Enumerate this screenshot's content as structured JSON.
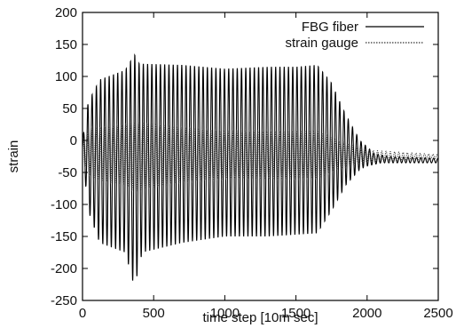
{
  "chart_data": {
    "type": "line",
    "title": "",
    "xlabel": "time step [10m sec]",
    "ylabel": "strain",
    "xlim": [
      0,
      2500
    ],
    "ylim": [
      -250,
      200
    ],
    "xticks": [
      0,
      500,
      1000,
      1500,
      2000,
      2500
    ],
    "yticks": [
      -250,
      -200,
      -150,
      -100,
      -50,
      0,
      50,
      100,
      150,
      200
    ],
    "grid": false,
    "legend_position": "top-right",
    "series": [
      {
        "name": "FBG fiber",
        "style": "solid",
        "color": "#000000",
        "oscillation_period_steps": 30,
        "offset_envelope": [
          [
            0,
            -10
          ],
          [
            1900,
            -25
          ],
          [
            2050,
            -30
          ],
          [
            2500,
            -32
          ]
        ],
        "upper_envelope": [
          [
            0,
            0
          ],
          [
            40,
            60
          ],
          [
            120,
            95
          ],
          [
            300,
            110
          ],
          [
            365,
            135
          ],
          [
            400,
            120
          ],
          [
            700,
            118
          ],
          [
            1000,
            112
          ],
          [
            1300,
            115
          ],
          [
            1500,
            115
          ],
          [
            1650,
            118
          ],
          [
            1750,
            90
          ],
          [
            1850,
            40
          ],
          [
            1950,
            0
          ],
          [
            2000,
            -10
          ],
          [
            2050,
            -20
          ],
          [
            2150,
            -25
          ],
          [
            2500,
            -28
          ]
        ],
        "lower_envelope": [
          [
            0,
            -20
          ],
          [
            40,
            -110
          ],
          [
            120,
            -160
          ],
          [
            300,
            -175
          ],
          [
            365,
            -230
          ],
          [
            420,
            -175
          ],
          [
            700,
            -160
          ],
          [
            1000,
            -150
          ],
          [
            1300,
            -150
          ],
          [
            1650,
            -145
          ],
          [
            1750,
            -110
          ],
          [
            1850,
            -70
          ],
          [
            1950,
            -45
          ],
          [
            2000,
            -40
          ],
          [
            2100,
            -35
          ],
          [
            2500,
            -35
          ]
        ]
      },
      {
        "name": "strain gauge",
        "style": "dotted",
        "color": "#333333",
        "oscillation_period_steps": 30,
        "offset_envelope": [
          [
            0,
            -15
          ],
          [
            1900,
            -25
          ],
          [
            2500,
            -25
          ]
        ],
        "upper_envelope": [
          [
            0,
            5
          ],
          [
            60,
            20
          ],
          [
            300,
            25
          ],
          [
            365,
            30
          ],
          [
            700,
            20
          ],
          [
            1000,
            15
          ],
          [
            1300,
            15
          ],
          [
            1650,
            15
          ],
          [
            1800,
            0
          ],
          [
            2000,
            -15
          ],
          [
            2500,
            -22
          ]
        ],
        "lower_envelope": [
          [
            0,
            -35
          ],
          [
            60,
            -60
          ],
          [
            300,
            -70
          ],
          [
            365,
            -80
          ],
          [
            700,
            -65
          ],
          [
            1000,
            -60
          ],
          [
            1300,
            -60
          ],
          [
            1650,
            -60
          ],
          [
            1800,
            -45
          ],
          [
            2000,
            -35
          ],
          [
            2500,
            -28
          ]
        ]
      }
    ]
  }
}
